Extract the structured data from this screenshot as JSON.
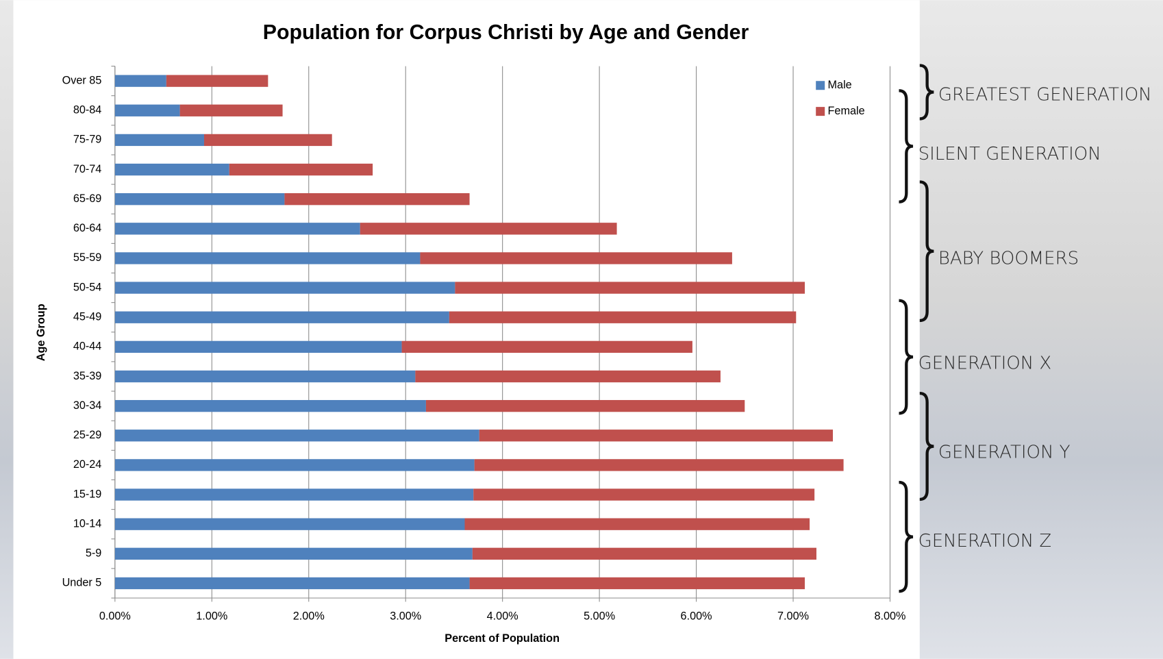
{
  "chart_data": {
    "type": "stacked-bar-horizontal",
    "title": "Population for Corpus Christi by Age and Gender",
    "xlabel": "Percent of Population",
    "ylabel": "Age Group",
    "categories": [
      "Under 5",
      "5-9",
      "10-14",
      "15-19",
      "20-24",
      "25-29",
      "30-34",
      "35-39",
      "40-44",
      "45-49",
      "50-54",
      "55-59",
      "60-64",
      "65-69",
      "70-74",
      "75-79",
      "80-84",
      "Over 85"
    ],
    "series": [
      {
        "name": "Male",
        "color": "#4f81bd",
        "values": [
          3.66,
          3.69,
          3.61,
          3.7,
          3.71,
          3.76,
          3.21,
          3.1,
          2.96,
          3.45,
          3.51,
          3.15,
          2.53,
          1.75,
          1.18,
          0.92,
          0.67,
          0.53
        ]
      },
      {
        "name": "Female",
        "color": "#c0504d",
        "values": [
          3.46,
          3.55,
          3.56,
          3.52,
          3.81,
          3.65,
          3.29,
          3.15,
          3.0,
          3.58,
          3.61,
          3.22,
          2.65,
          1.91,
          1.48,
          1.32,
          1.06,
          1.05
        ]
      }
    ],
    "xlim": [
      0,
      8
    ],
    "xticks": [
      {
        "value": 0,
        "label": "0.00%"
      },
      {
        "value": 1,
        "label": "1.00%"
      },
      {
        "value": 2,
        "label": "2.00%"
      },
      {
        "value": 3,
        "label": "3.00%"
      },
      {
        "value": 4,
        "label": "4.00%"
      },
      {
        "value": 5,
        "label": "5.00%"
      },
      {
        "value": 6,
        "label": "6.00%"
      },
      {
        "value": 7,
        "label": "7.00%"
      },
      {
        "value": 8,
        "label": "8.00%"
      }
    ],
    "grid": true,
    "legend": "top-right",
    "annotations": [
      "GREATEST GENERATION",
      "SILENT GENERATION",
      "BABY BOOMERS",
      "GENERATION X",
      "GENERATION Y",
      "GENERATION Z"
    ]
  }
}
